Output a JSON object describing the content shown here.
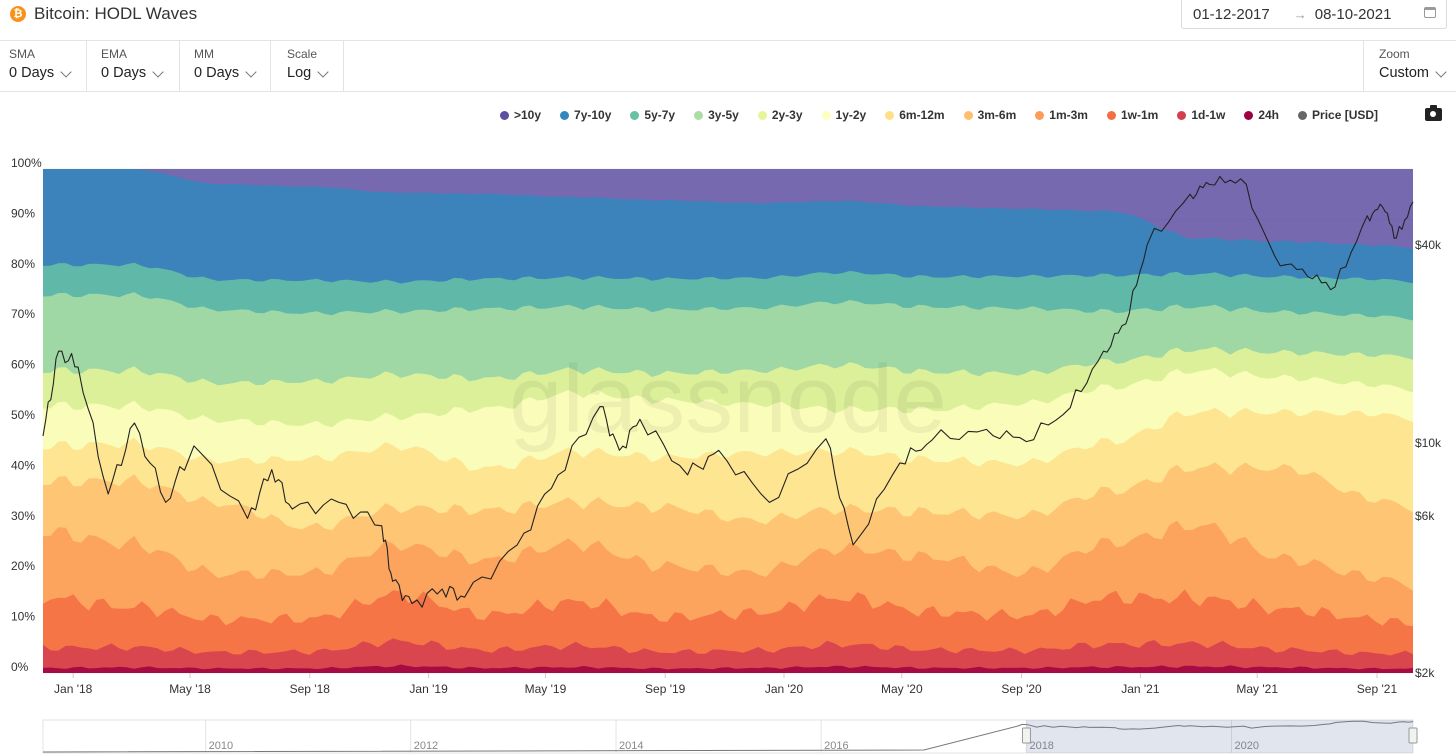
{
  "header": {
    "icon": "bitcoin-icon",
    "title": "Bitcoin: HODL Waves",
    "date_from": "01-12-2017",
    "date_arrow": "→",
    "date_to": "08-10-2021"
  },
  "controls": {
    "sma": {
      "label": "SMA",
      "value": "0 Days"
    },
    "ema": {
      "label": "EMA",
      "value": "0 Days"
    },
    "mm": {
      "label": "MM",
      "value": "0 Days"
    },
    "scale": {
      "label": "Scale",
      "value": "Log"
    },
    "zoom": {
      "label": "Zoom",
      "value": "Custom"
    }
  },
  "watermark": "glassnode",
  "chart_data": {
    "type": "area",
    "title": "Bitcoin: HODL Waves",
    "stacking": "percent",
    "x_start": "2017-12-01",
    "x_end": "2021-10-08",
    "x_ticks": [
      "Jan '18",
      "May '18",
      "Sep '18",
      "Jan '19",
      "May '19",
      "Sep '19",
      "Jan '20",
      "May '20",
      "Sep '20",
      "Jan '21",
      "May '21",
      "Sep '21"
    ],
    "y_ticks": [
      "0%",
      "10%",
      "20%",
      "30%",
      "40%",
      "50%",
      "60%",
      "70%",
      "80%",
      "90%",
      "100%"
    ],
    "y2_ticks": [
      "$2k",
      "$6k",
      "$10k",
      "$40k"
    ],
    "y2_scale": "log",
    "y2_range": [
      2000,
      68000
    ],
    "x_sample_dates": [
      "2017-12",
      "2018-03",
      "2018-06",
      "2018-09",
      "2018-12",
      "2019-03",
      "2019-06",
      "2019-09",
      "2019-12",
      "2020-03",
      "2020-06",
      "2020-09",
      "2020-12",
      "2021-03",
      "2021-06",
      "2021-09",
      "2021-10"
    ],
    "series": [
      {
        "name": "24h",
        "color": "#9e0142",
        "values": [
          1.0,
          1.1,
          0.9,
          0.9,
          1.4,
          1.0,
          1.2,
          0.9,
          1.0,
          1.3,
          1.0,
          1.0,
          1.2,
          1.3,
          1.1,
          0.9,
          0.9
        ]
      },
      {
        "name": "1d-1w",
        "color": "#d53e4f",
        "values": [
          4.0,
          4.0,
          3.2,
          3.3,
          5.0,
          3.6,
          4.4,
          3.4,
          3.5,
          4.5,
          3.6,
          3.5,
          4.6,
          4.5,
          3.5,
          3.1,
          3.1
        ]
      },
      {
        "name": "1w-1m",
        "color": "#f46d43",
        "values": [
          10.0,
          8.0,
          6.5,
          6.5,
          9.5,
          7.0,
          9.0,
          7.0,
          7.5,
          9.5,
          7.5,
          7.0,
          9.5,
          9.0,
          8.0,
          7.0,
          6.0
        ]
      },
      {
        "name": "1m-3m",
        "color": "#fc9d59",
        "values": [
          13.0,
          12.5,
          9.0,
          9.0,
          10.0,
          11.0,
          12.0,
          10.5,
          8.0,
          10.0,
          11.0,
          8.5,
          11.0,
          14.5,
          10.0,
          8.5,
          8.0
        ]
      },
      {
        "name": "3m-6m",
        "color": "#fdbf6f",
        "values": [
          10.0,
          12.5,
          14.0,
          9.0,
          7.5,
          10.0,
          8.5,
          12.0,
          10.5,
          8.0,
          9.0,
          11.5,
          10.5,
          11.5,
          18.0,
          16.0,
          16.0
        ]
      },
      {
        "name": "6m-12m",
        "color": "#fee08b",
        "values": [
          7.0,
          7.4,
          8.5,
          13.6,
          12.5,
          8.4,
          10.4,
          10.2,
          13.5,
          11.7,
          10.4,
          10.5,
          10.0,
          11.0,
          11.1,
          17.5,
          18.4
        ]
      },
      {
        "name": "1y-2y",
        "color": "#ffffbf",
        "values": [
          8.0,
          7.5,
          8.0,
          6.8,
          6.0,
          12.0,
          12.0,
          11.6,
          9.8,
          8.5,
          10.0,
          12.0,
          11.0,
          8.2,
          6.9,
          5.9,
          6.0
        ]
      },
      {
        "name": "2y-3y",
        "color": "#e6f598",
        "values": [
          7.0,
          7.0,
          7.4,
          8.5,
          8.5,
          6.0,
          4.7,
          5.5,
          6.6,
          9.0,
          7.5,
          6.0,
          5.2,
          4.2,
          5.0,
          6.1,
          6.7
        ]
      },
      {
        "name": "3y-5y",
        "color": "#abdda4",
        "values": [
          15.0,
          15.0,
          14.5,
          13.5,
          12.8,
          14.0,
          13.0,
          13.0,
          12.6,
          12.8,
          13.0,
          13.1,
          10.2,
          8.5,
          8.0,
          8.0,
          8.0
        ]
      },
      {
        "name": "5y-7y",
        "color": "#66c2a5",
        "values": [
          6.0,
          6.0,
          6.0,
          6.5,
          6.0,
          6.0,
          6.0,
          6.3,
          6.0,
          6.0,
          6.0,
          6.4,
          7.3,
          6.5,
          7.0,
          7.5,
          7.6
        ]
      },
      {
        "name": "7y-10y",
        "color": "#3288bd",
        "values": [
          19.0,
          19.0,
          19.0,
          18.5,
          18.0,
          17.0,
          16.5,
          16.0,
          15.0,
          14.5,
          14.0,
          13.5,
          13.0,
          7.0,
          7.0,
          7.0,
          7.0
        ]
      },
      {
        "name": ">10y",
        "color": "#5e4fa2",
        "values": [
          0.0,
          0.0,
          3.0,
          3.5,
          4.8,
          5.0,
          5.8,
          6.4,
          6.8,
          6.5,
          7.5,
          8.0,
          8.5,
          13.8,
          14.4,
          15.5,
          16.3
        ]
      }
    ],
    "price": {
      "name": "Price [USD]",
      "color": "#222222",
      "dates": [
        "2017-12-01",
        "2017-12-17",
        "2018-01-06",
        "2018-02-06",
        "2018-03-05",
        "2018-04-06",
        "2018-05-05",
        "2018-06-29",
        "2018-07-24",
        "2018-08-14",
        "2018-10-01",
        "2018-11-14",
        "2018-11-25",
        "2018-12-15",
        "2019-01-15",
        "2019-02-07",
        "2019-04-02",
        "2019-05-14",
        "2019-06-26",
        "2019-07-16",
        "2019-08-06",
        "2019-09-24",
        "2019-10-26",
        "2019-12-17",
        "2020-02-13",
        "2020-03-12",
        "2020-04-29",
        "2020-06-01",
        "2020-07-27",
        "2020-09-06",
        "2020-10-21",
        "2020-11-24",
        "2020-12-17",
        "2021-01-08",
        "2021-02-21",
        "2021-03-13",
        "2021-04-14",
        "2021-05-19",
        "2021-06-22",
        "2021-07-20",
        "2021-08-22",
        "2021-09-07",
        "2021-09-21",
        "2021-10-08"
      ],
      "values": [
        10500,
        19000,
        17000,
        7000,
        11500,
        6600,
        9800,
        5900,
        8300,
        6300,
        6600,
        5600,
        3800,
        3250,
        3600,
        3400,
        4900,
        8000,
        12900,
        9500,
        11800,
        8000,
        9500,
        6600,
        10300,
        4900,
        8700,
        10200,
        11000,
        10100,
        12800,
        19000,
        23000,
        40000,
        57000,
        61000,
        63500,
        37000,
        32000,
        29800,
        49000,
        52000,
        42000,
        54000
      ]
    },
    "navigator": {
      "range": [
        "2018-01",
        "2021-10"
      ],
      "ticks": [
        "2010",
        "2012",
        "2014",
        "2016",
        "2018",
        "2020"
      ]
    }
  }
}
